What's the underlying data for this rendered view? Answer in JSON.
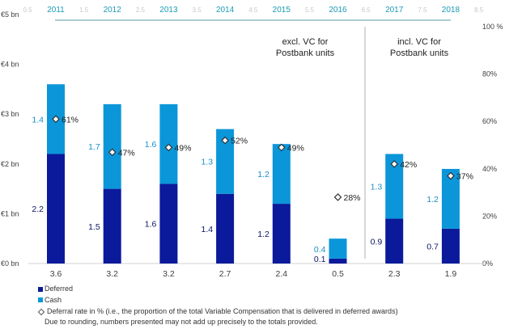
{
  "chart_data": {
    "type": "bar",
    "stacked": true,
    "title": "",
    "top_axis": {
      "year_labels": [
        "2011",
        "2012",
        "2013",
        "2014",
        "2015",
        "2016",
        "2017",
        "2018"
      ],
      "ghost_labels": [
        "0.5",
        "1.5",
        "2.5",
        "3.5",
        "4.5",
        "5.5",
        "6.5",
        "7.5",
        "8.5"
      ]
    },
    "categories": [
      "3.6",
      "3.2",
      "3.2",
      "2.7",
      "2.4",
      "0.5",
      "2.3",
      "1.9"
    ],
    "totals": [
      3.6,
      3.2,
      3.2,
      2.7,
      2.4,
      0.5,
      2.3,
      1.9
    ],
    "series": [
      {
        "name": "Deferred",
        "color": "#0a1a9a",
        "label_color": "#0b1560",
        "values": [
          2.2,
          1.5,
          1.6,
          1.4,
          1.2,
          0.1,
          0.9,
          0.7
        ]
      },
      {
        "name": "Cash",
        "color": "#0b96d9",
        "label_color": "#1a8fc7",
        "values": [
          1.4,
          1.7,
          1.6,
          1.3,
          1.2,
          0.4,
          1.3,
          1.2
        ]
      }
    ],
    "deferral_rate": {
      "name": "Deferral rate in % (i.e., the proportion of the total Variable Compensation that is delivered in deferred awards)",
      "values": [
        61,
        47,
        49,
        52,
        49,
        28,
        42,
        37
      ],
      "labels": [
        "61%",
        "47%",
        "49%",
        "52%",
        "49%",
        "28%",
        "42%",
        "37%"
      ]
    },
    "y_left": {
      "ticks": [
        "€0 bn",
        "€1 bn",
        "€2 bn",
        "€3 bn",
        "€4 bn",
        "€5 bn"
      ],
      "range": [
        0,
        5
      ]
    },
    "y_right": {
      "ticks": [
        "0%",
        "20%",
        "40%",
        "60%",
        "80%",
        "100 %"
      ],
      "range": [
        0,
        100
      ]
    },
    "annotations": {
      "excl": [
        "excl. VC for",
        "Postbank units"
      ],
      "incl": [
        "incl. VC for",
        "Postbank units"
      ]
    },
    "legend": {
      "deferred": "Deferred",
      "cash": "Cash",
      "deferral": "Deferral rate in % (i.e., the proportion of the total Variable Compensation that is delivered in deferred awards)",
      "note": "Due to rounding, numbers presented may not add up precisely to the totals provided."
    }
  }
}
